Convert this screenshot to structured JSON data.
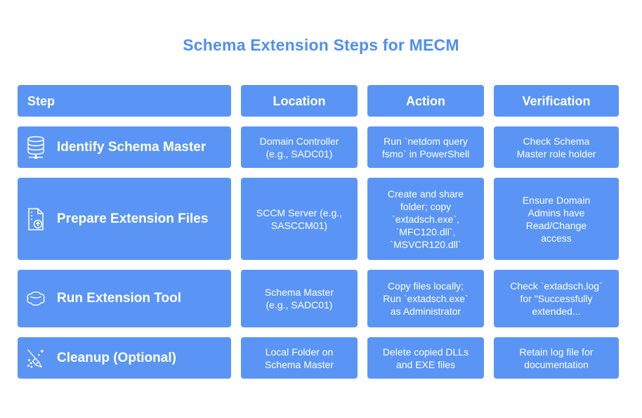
{
  "title": "Schema Extension Steps for MECM",
  "headers": {
    "step": "Step",
    "location": "Location",
    "action": "Action",
    "verification": "Verification"
  },
  "rows": [
    {
      "icon": "database-icon",
      "step": "Identify Schema Master",
      "location": "Domain Controller\n(e.g., SADC01)",
      "action": "Run `netdom query\nfsmo` in PowerShell",
      "verification": "Check Schema\nMaster role holder"
    },
    {
      "icon": "file-upload-icon",
      "step": "Prepare Extension Files",
      "location": "SCCM Server (e.g.,\nSASCCM01)",
      "action": "Create and share\nfolder; copy\n`extadsch.exe`,\n`MFC120.dll`,\n`MSVCR120.dll`",
      "verification": "Ensure Domain\nAdmins have\nRead/Change\naccess"
    },
    {
      "icon": "cloud-icon",
      "step": "Run Extension Tool",
      "location": "Schema Master\n(e.g., SADC01)",
      "action": "Copy files locally;\nRun `extadsch.exe`\nas Administrator",
      "verification": "Check `extadsch.log`\nfor \"Successfully\nextended..."
    },
    {
      "icon": "broom-icon",
      "step": "Cleanup (Optional)",
      "location": "Local Folder on\nSchema Master",
      "action": "Delete copied DLLs\nand EXE files",
      "verification": "Retain log file for\ndocumentation"
    }
  ]
}
